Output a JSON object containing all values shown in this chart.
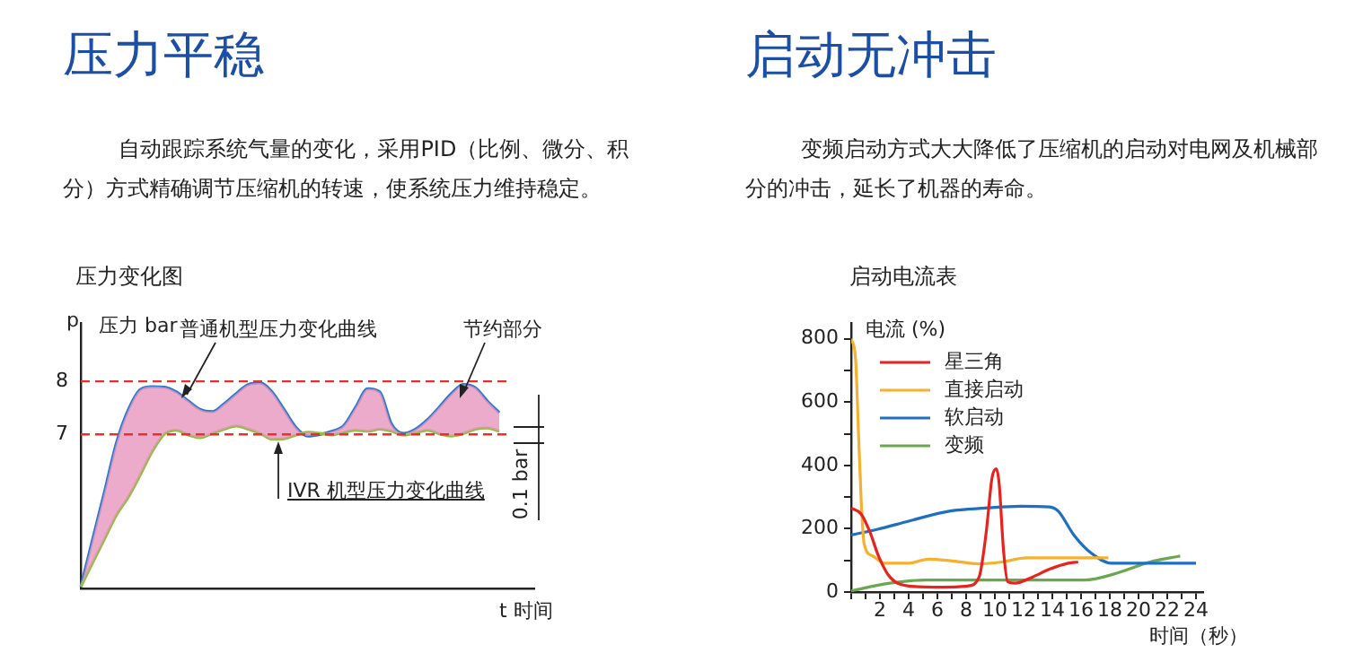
{
  "chart_data": [
    {
      "type": "line",
      "title": "压力平稳",
      "subtitle": "自动跟踪系统气量的变化，采用PID（比例、微分、积分）方式精确调节压缩机的转速，使系统压力维持稳定。",
      "xlabel": "t 时间",
      "ylabel": "压力 bar",
      "annotations": [
        "压力变化图",
        "p",
        "普通机型压力变化曲线",
        "节约部分",
        "IVR 机型压力变化曲线",
        "0.1 bar"
      ],
      "categories": [
        null,
        null,
        null,
        null,
        null,
        null,
        null,
        null,
        null,
        null,
        null,
        null,
        null,
        null,
        null,
        null,
        null,
        null,
        null,
        null,
        null,
        null,
        null,
        null,
        null,
        null,
        null,
        null,
        null,
        null,
        null,
        null,
        null,
        null,
        null,
        null,
        null,
        null,
        null
      ],
      "series": [
        {
          "color": "#8cbf3c",
          "values": [
            4.13,
            4.59,
            5.04,
            5.49,
            5.83,
            6.25,
            6.69,
            7.01,
            7.08,
            6.99,
            6.94,
            7.02,
            7.1,
            7.16,
            7.1,
            7.02,
            6.91,
            6.92,
            6.99,
            7.04,
            7.02,
            6.99,
            7.04,
            7.08,
            7.06,
            7.1,
            7.06,
            6.99,
            7.03,
            7.08,
            7.01,
            6.97,
            7.02,
            7.1,
            7.12,
            7.06,
            null,
            null,
            null
          ]
        },
        {
          "color": "#2a78c8",
          "lower": [
            4.13,
            4.59,
            5.04,
            5.49,
            5.83,
            6.25,
            6.69,
            7.01,
            7.08,
            6.99,
            6.94,
            7.02,
            7.1,
            7.16,
            7.1,
            7.02,
            6.91,
            6.92,
            6.99,
            7.04,
            7.02,
            6.99,
            7.04,
            7.08,
            7.06,
            7.1,
            7.06,
            6.99,
            7.03,
            7.08,
            7.01,
            6.97,
            7.02,
            7.1,
            7.12,
            7.06,
            null,
            null,
            null
          ],
          "upper": [
            4.13,
            5.04,
            5.94,
            6.86,
            7.48,
            7.85,
            7.9,
            7.89,
            7.8,
            7.63,
            7.47,
            7.43,
            7.58,
            7.77,
            7.94,
            7.97,
            7.8,
            7.47,
            7.13,
            6.97,
            7.0,
            7.06,
            7.17,
            7.52,
            7.86,
            7.8,
            7.19,
            7.02,
            7.1,
            7.28,
            7.52,
            7.77,
            7.94,
            7.88,
            7.63,
            7.41,
            null,
            null,
            null
          ],
          "values": [
            4.13,
            5.04,
            5.94,
            6.86,
            7.48,
            7.85,
            7.9,
            7.89,
            7.8,
            7.63,
            7.47,
            7.43,
            7.58,
            7.77,
            7.94,
            7.97,
            7.8,
            7.47,
            7.13,
            6.97,
            7.0,
            7.06,
            7.17,
            7.52,
            7.86,
            7.8,
            7.19,
            7.02,
            7.1,
            7.28,
            7.52,
            7.77,
            7.94,
            7.88,
            7.63,
            7.41,
            null,
            null,
            null
          ]
        }
      ],
      "ylim": [
        4.1,
        9.1
      ],
      "yticks": [
        7,
        8
      ],
      "tick_labels": "y",
      "ref_lines": [
        {
          "axis": "y",
          "value": 8,
          "color": "#e8302a",
          "line_style": "dashed"
        },
        {
          "axis": "y",
          "value": 7,
          "color": "#e8302a",
          "line_style": "dashed"
        }
      ]
    },
    {
      "type": "line",
      "title": "启动无冲击",
      "subtitle": "变频启动方式大大降低了压缩机的启动对电网及机械部分的冲击，延长了机器的寿命。",
      "xlabel": "时间（秒）",
      "ylabel": "电流 (%)",
      "annotations": [
        "启动电流表"
      ],
      "legend": "top left",
      "series": [
        {
          "name": "星三角",
          "color": "#e8231e",
          "x": [
            0,
            0.7,
            1.3,
            1.9,
            2.7,
            4,
            6.4,
            8.1,
            8.9,
            9.4,
            9.8,
            10.1,
            10.3,
            10.6,
            10.9,
            11.4,
            12.6,
            13.8,
            15.1,
            15.8
          ],
          "values": [
            265,
            246,
            190,
            114,
            47,
            19,
            15,
            19,
            47,
            190,
            360,
            389,
            341,
            133,
            32,
            28,
            47,
            72,
            91,
            95
          ]
        },
        {
          "name": "直接启动",
          "color": "#f5b02e",
          "x": [
            0,
            0.3,
            0.5,
            0.7,
            0.9,
            1.5,
            2.3,
            4,
            5.4,
            6.9,
            8.9,
            10.5,
            12.2,
            15.1,
            17.9
          ],
          "values": [
            800,
            739,
            512,
            284,
            152,
            114,
            91,
            91,
            104,
            99,
            89,
            95,
            108,
            108,
            108
          ]
        },
        {
          "name": "软启动",
          "color": "#1f6fc0",
          "x": [
            0,
            1.9,
            4,
            6.9,
            9.3,
            11.8,
            13.8,
            14.4,
            15.5,
            16.7,
            18.1,
            20,
            24
          ],
          "values": [
            180,
            199,
            224,
            256,
            265,
            271,
            269,
            256,
            180,
            123,
            91,
            91,
            91
          ]
        },
        {
          "name": "变频",
          "color": "#6aa84f",
          "x": [
            0,
            2.7,
            5.2,
            11,
            16.3,
            18.3,
            20.8,
            22.9
          ],
          "values": [
            4,
            28,
            38,
            38,
            38,
            57,
            95,
            114
          ]
        }
      ],
      "xlim": [
        0,
        24.5
      ],
      "xticks": [
        {
          "value": 0,
          "label": null
        },
        {
          "value": 1,
          "label": null
        },
        2,
        {
          "value": 3,
          "label": null
        },
        4,
        {
          "value": 5,
          "label": null
        },
        6,
        {
          "value": 7,
          "label": null
        },
        8,
        {
          "value": 9,
          "label": null
        },
        10,
        {
          "value": 11,
          "label": null
        },
        12,
        {
          "value": 13,
          "label": null
        },
        14,
        {
          "value": 15,
          "label": null
        },
        16,
        {
          "value": 17,
          "label": null
        },
        18,
        {
          "value": 19,
          "label": null
        },
        20,
        {
          "value": 21,
          "label": null
        },
        22,
        {
          "value": 23,
          "label": null
        },
        24
      ],
      "ylim": [
        0,
        850
      ],
      "yticks": [
        0,
        {
          "value": 100,
          "label": null
        },
        200,
        {
          "value": 300,
          "label": null
        },
        400,
        {
          "value": 500,
          "label": null
        },
        600,
        {
          "value": 700,
          "label": null
        },
        800
      ]
    }
  ]
}
